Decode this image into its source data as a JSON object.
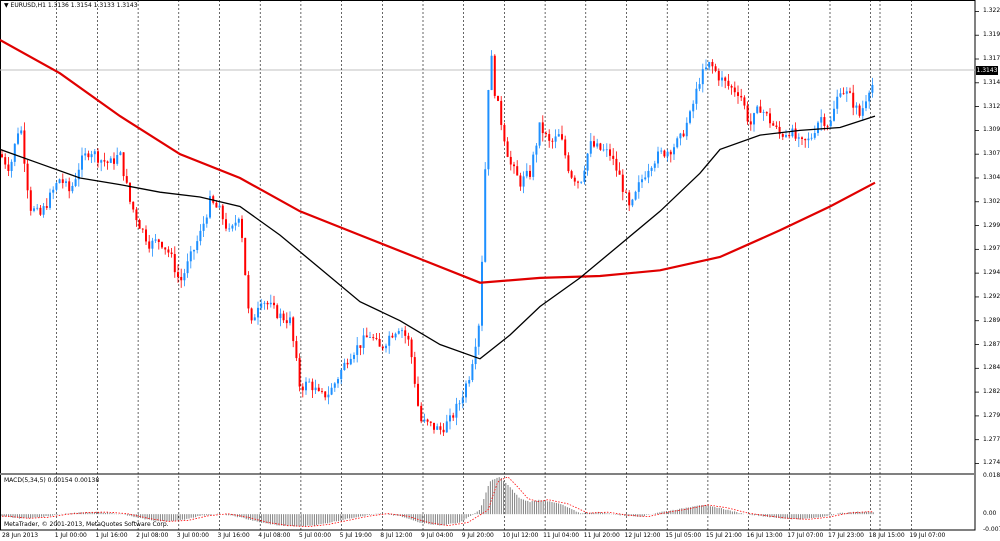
{
  "symbol_header": "EURUSD,H1  1.3136 1.3154 1.3133 1.3143",
  "macd_header": "MACD(5,34,5) 0.00154 0.00138",
  "copyright": "MetaTrader, © 2001-2013, MetaQuotes Software Corp.",
  "current_price_label": "1.3143",
  "price_axis": [
    "1.3220",
    "1.3195",
    "1.3170",
    "1.3145",
    "1.3120",
    "1.3095",
    "1.3070",
    "1.3045",
    "1.3020",
    "1.2995",
    "1.2970",
    "1.2945",
    "1.2920",
    "1.2895",
    "1.2870",
    "1.2845",
    "1.2820",
    "1.2795",
    "1.2770",
    "1.2745"
  ],
  "macd_axis": [
    "0.01843",
    "0.00",
    "-0.00764"
  ],
  "time_axis": [
    "28 Jun 2013",
    "1 Jul 00:00",
    "1 Jul 16:00",
    "2 Jul 08:00",
    "3 Jul 00:00",
    "3 Jul 16:00",
    "4 Jul 08:00",
    "5 Jul 00:00",
    "5 Jul 19:00",
    "8 Jul 12:00",
    "9 Jul 04:00",
    "9 Jul 20:00",
    "10 Jul 12:00",
    "11 Jul 04:00",
    "11 Jul 20:00",
    "12 Jul 12:00",
    "15 Jul 05:00",
    "15 Jul 21:00",
    "16 Jul 13:00",
    "17 Jul 07:00",
    "17 Jul 23:00",
    "18 Jul 15:00",
    "19 Jul 07:00"
  ],
  "colors": {
    "bull": "#1e90ff",
    "bear": "#ff0000",
    "ma_slow": "#e00000",
    "ma_fast": "#000000",
    "macd_hist": "#808080",
    "macd_signal": "#ff0000",
    "grid": "#000000"
  },
  "chart_data": {
    "type": "line",
    "title": "EURUSD,H1",
    "price_range": [
      1.2735,
      1.3232
    ],
    "macd_range": [
      -0.00764,
      0.01843
    ],
    "price_path": [
      [
        0,
        1.307
      ],
      [
        10,
        1.3055
      ],
      [
        20,
        1.3105
      ],
      [
        30,
        1.3015
      ],
      [
        40,
        1.3005
      ],
      [
        50,
        1.3025
      ],
      [
        60,
        1.3045
      ],
      [
        70,
        1.303
      ],
      [
        80,
        1.306
      ],
      [
        90,
        1.3075
      ],
      [
        100,
        1.3065
      ],
      [
        110,
        1.306
      ],
      [
        120,
        1.307
      ],
      [
        130,
        1.302
      ],
      [
        140,
        1.2995
      ],
      [
        150,
        1.2975
      ],
      [
        160,
        1.298
      ],
      [
        170,
        1.2965
      ],
      [
        180,
        1.2935
      ],
      [
        190,
        1.296
      ],
      [
        200,
        1.2985
      ],
      [
        210,
        1.302
      ],
      [
        220,
        1.301
      ],
      [
        230,
        1.2985
      ],
      [
        240,
        1.301
      ],
      [
        250,
        1.2885
      ],
      [
        260,
        1.292
      ],
      [
        270,
        1.291
      ],
      [
        280,
        1.29
      ],
      [
        290,
        1.2895
      ],
      [
        300,
        1.2825
      ],
      [
        310,
        1.283
      ],
      [
        320,
        1.2815
      ],
      [
        330,
        1.282
      ],
      [
        340,
        1.284
      ],
      [
        350,
        1.286
      ],
      [
        360,
        1.287
      ],
      [
        370,
        1.288
      ],
      [
        380,
        1.2865
      ],
      [
        390,
        1.288
      ],
      [
        400,
        1.289
      ],
      [
        410,
        1.287
      ],
      [
        420,
        1.279
      ],
      [
        430,
        1.2785
      ],
      [
        440,
        1.278
      ],
      [
        450,
        1.279
      ],
      [
        460,
        1.281
      ],
      [
        470,
        1.284
      ],
      [
        480,
        1.29
      ],
      [
        485,
        1.305
      ],
      [
        490,
        1.3185
      ],
      [
        495,
        1.3135
      ],
      [
        500,
        1.311
      ],
      [
        510,
        1.306
      ],
      [
        520,
        1.304
      ],
      [
        530,
        1.305
      ],
      [
        540,
        1.31
      ],
      [
        550,
        1.308
      ],
      [
        560,
        1.309
      ],
      [
        570,
        1.305
      ],
      [
        580,
        1.304
      ],
      [
        590,
        1.308
      ],
      [
        600,
        1.3075
      ],
      [
        610,
        1.307
      ],
      [
        620,
        1.3045
      ],
      [
        630,
        1.301
      ],
      [
        640,
        1.304
      ],
      [
        650,
        1.306
      ],
      [
        660,
        1.307
      ],
      [
        670,
        1.3075
      ],
      [
        680,
        1.3085
      ],
      [
        690,
        1.311
      ],
      [
        700,
        1.315
      ],
      [
        710,
        1.3165
      ],
      [
        720,
        1.315
      ],
      [
        730,
        1.314
      ],
      [
        740,
        1.3135
      ],
      [
        750,
        1.31
      ],
      [
        760,
        1.312
      ],
      [
        770,
        1.3105
      ],
      [
        780,
        1.309
      ],
      [
        790,
        1.3095
      ],
      [
        800,
        1.308
      ],
      [
        810,
        1.3085
      ],
      [
        820,
        1.311
      ],
      [
        830,
        1.31
      ],
      [
        840,
        1.314
      ],
      [
        850,
        1.313
      ],
      [
        860,
        1.311
      ],
      [
        870,
        1.3143
      ]
    ],
    "ma_slow": [
      [
        0,
        1.319
      ],
      [
        60,
        1.3155
      ],
      [
        120,
        1.311
      ],
      [
        180,
        1.307
      ],
      [
        240,
        1.3045
      ],
      [
        300,
        1.301
      ],
      [
        360,
        1.2985
      ],
      [
        420,
        1.296
      ],
      [
        480,
        1.2935
      ],
      [
        540,
        1.294
      ],
      [
        600,
        1.2942
      ],
      [
        660,
        1.2948
      ],
      [
        720,
        1.2962
      ],
      [
        780,
        1.299
      ],
      [
        830,
        1.3015
      ],
      [
        875,
        1.304
      ]
    ],
    "ma_fast": [
      [
        0,
        1.3075
      ],
      [
        40,
        1.306
      ],
      [
        80,
        1.3045
      ],
      [
        120,
        1.3038
      ],
      [
        160,
        1.303
      ],
      [
        200,
        1.3025
      ],
      [
        240,
        1.3015
      ],
      [
        280,
        1.2985
      ],
      [
        320,
        1.295
      ],
      [
        360,
        1.2915
      ],
      [
        400,
        1.2895
      ],
      [
        440,
        1.287
      ],
      [
        480,
        1.2855
      ],
      [
        510,
        1.288
      ],
      [
        540,
        1.291
      ],
      [
        580,
        1.294
      ],
      [
        620,
        1.2975
      ],
      [
        660,
        1.301
      ],
      [
        700,
        1.305
      ],
      [
        720,
        1.3075
      ],
      [
        760,
        1.309
      ],
      [
        800,
        1.3095
      ],
      [
        840,
        1.3098
      ],
      [
        875,
        1.311
      ]
    ],
    "macd_path": [
      [
        0,
        -0.001
      ],
      [
        20,
        -0.002
      ],
      [
        40,
        -0.0015
      ],
      [
        60,
        0.0
      ],
      [
        80,
        0.0008
      ],
      [
        100,
        0.001
      ],
      [
        120,
        0.0002
      ],
      [
        140,
        -0.002
      ],
      [
        160,
        -0.0035
      ],
      [
        180,
        -0.003
      ],
      [
        200,
        -0.0008
      ],
      [
        220,
        0.0002
      ],
      [
        240,
        -0.0015
      ],
      [
        260,
        -0.004
      ],
      [
        280,
        -0.0055
      ],
      [
        300,
        -0.006
      ],
      [
        320,
        -0.005
      ],
      [
        340,
        -0.003
      ],
      [
        360,
        -0.001
      ],
      [
        380,
        0.0003
      ],
      [
        400,
        -0.001
      ],
      [
        420,
        -0.004
      ],
      [
        440,
        -0.0055
      ],
      [
        460,
        -0.004
      ],
      [
        480,
        0.002
      ],
      [
        490,
        0.016
      ],
      [
        500,
        0.018
      ],
      [
        510,
        0.013
      ],
      [
        520,
        0.0075
      ],
      [
        530,
        0.006
      ],
      [
        540,
        0.007
      ],
      [
        560,
        0.005
      ],
      [
        580,
        0.0005
      ],
      [
        600,
        0.001
      ],
      [
        620,
        -0.0005
      ],
      [
        640,
        -0.0012
      ],
      [
        660,
        0.001
      ],
      [
        680,
        0.0025
      ],
      [
        700,
        0.0045
      ],
      [
        720,
        0.003
      ],
      [
        740,
        0.0005
      ],
      [
        760,
        -0.0008
      ],
      [
        780,
        -0.002
      ],
      [
        800,
        -0.0025
      ],
      [
        820,
        -0.0015
      ],
      [
        840,
        0.0005
      ],
      [
        860,
        0.0012
      ],
      [
        875,
        0.001
      ]
    ]
  }
}
